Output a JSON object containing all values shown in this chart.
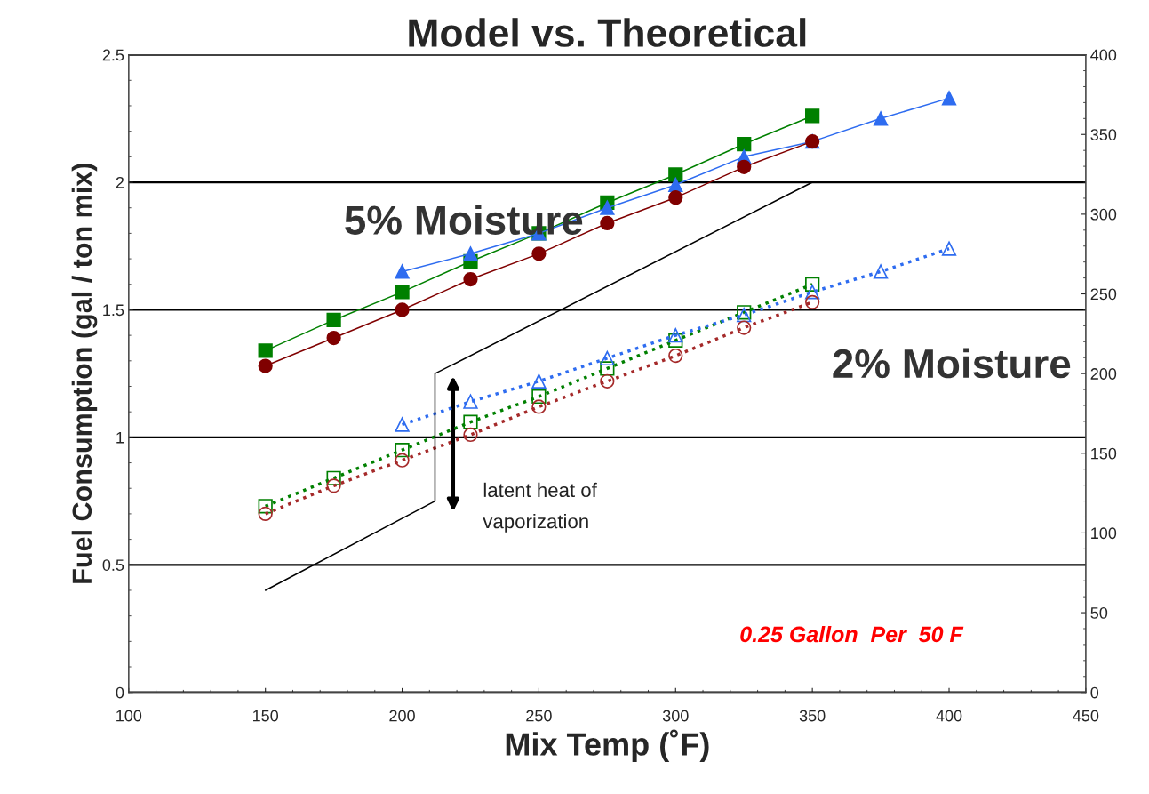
{
  "chart_data": {
    "type": "line",
    "title": "Model vs. Theoretical",
    "xlabel": "Mix Temp (˚F)",
    "ylabel": "Fuel Consumption (gal / ton mix)",
    "xlim": [
      100,
      450
    ],
    "xticks": [
      100,
      150,
      200,
      250,
      300,
      350,
      400,
      450
    ],
    "ylim": [
      0,
      2.5
    ],
    "yticks": [
      0,
      0.5,
      1,
      1.5,
      2,
      2.5
    ],
    "y2lim": [
      0,
      400
    ],
    "y2ticks": [
      0,
      50,
      100,
      150,
      200,
      250,
      300,
      350,
      400
    ],
    "grid": "y",
    "legend": false,
    "series": [
      {
        "color": "#008000",
        "marker": "square",
        "line_style": "solid",
        "x": [
          150,
          175,
          200,
          225,
          250,
          275,
          300,
          325,
          350
        ],
        "values": [
          1.34,
          1.46,
          1.57,
          1.69,
          1.8,
          1.92,
          2.03,
          2.15,
          2.26
        ]
      },
      {
        "color": "#2e6cf0",
        "marker": "triangle",
        "line_style": "solid",
        "x": [
          200,
          225,
          250,
          275,
          300,
          325,
          350,
          375,
          400
        ],
        "values": [
          1.65,
          1.72,
          1.8,
          1.9,
          1.99,
          2.1,
          2.16,
          2.25,
          2.33
        ]
      },
      {
        "color": "#800000",
        "marker": "circle",
        "line_style": "solid",
        "x": [
          150,
          175,
          200,
          225,
          250,
          275,
          300,
          325,
          350
        ],
        "values": [
          1.28,
          1.39,
          1.5,
          1.62,
          1.72,
          1.84,
          1.94,
          2.06,
          2.16
        ]
      },
      {
        "color": "#008000",
        "marker": "square",
        "line_style": "dotted",
        "x": [
          150,
          175,
          200,
          225,
          250,
          275,
          300,
          325,
          350
        ],
        "values": [
          0.73,
          0.84,
          0.95,
          1.06,
          1.16,
          1.27,
          1.38,
          1.49,
          1.6
        ]
      },
      {
        "color": "#2e6cf0",
        "marker": "triangle",
        "line_style": "dotted",
        "x": [
          200,
          225,
          250,
          275,
          300,
          325,
          350,
          375,
          400
        ],
        "values": [
          1.05,
          1.14,
          1.22,
          1.31,
          1.4,
          1.48,
          1.57,
          1.65,
          1.74
        ]
      },
      {
        "color": "#a52a2a",
        "marker": "circle",
        "line_style": "dotted",
        "x": [
          150,
          175,
          200,
          225,
          250,
          275,
          300,
          325,
          350
        ],
        "values": [
          0.7,
          0.81,
          0.91,
          1.01,
          1.12,
          1.22,
          1.32,
          1.43,
          1.53
        ]
      },
      {
        "color": "#000000",
        "marker": "none",
        "line_style": "solid",
        "x": [
          150,
          212,
          212,
          350
        ],
        "values": [
          0.4,
          0.75,
          1.25,
          2.0
        ]
      }
    ],
    "annotations": [
      "5% Moisture",
      "2% Moisture",
      "latent heat of\nvaporization",
      "0.25 Gallon  Per  50 F"
    ]
  }
}
